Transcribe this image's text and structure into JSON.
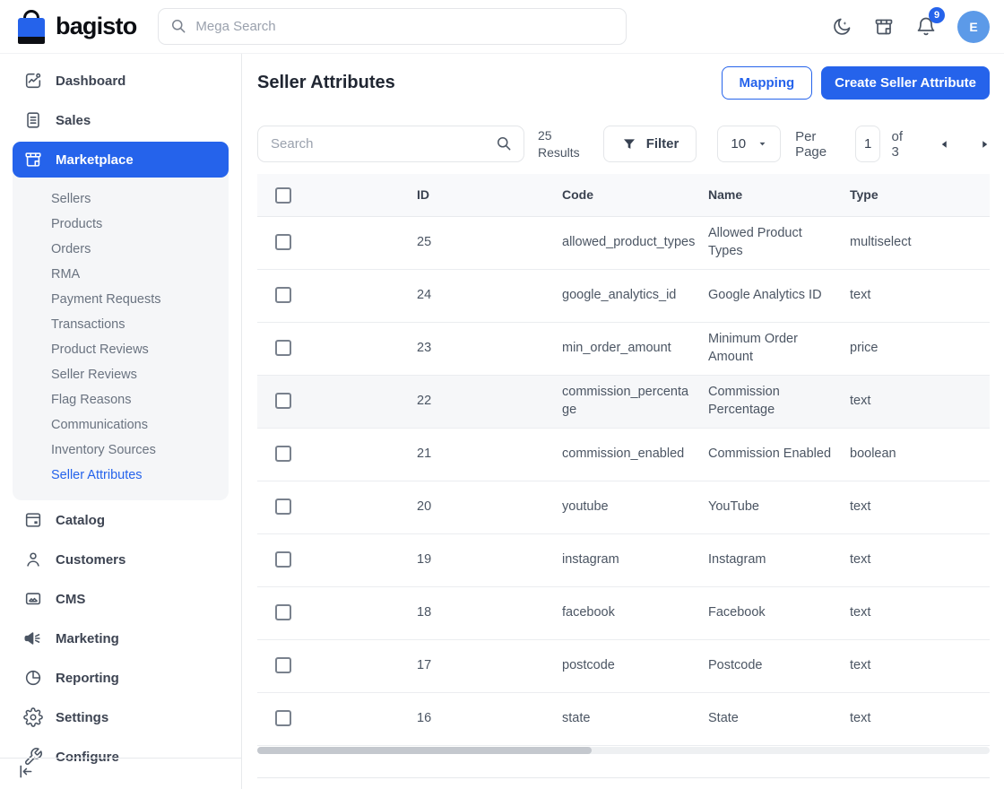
{
  "header": {
    "logo_text": "bagisto",
    "search_placeholder": "Mega Search",
    "notification_count": "9",
    "avatar_initial": "E"
  },
  "sidebar": {
    "items": [
      {
        "label": "Dashboard",
        "icon": "dashboard-icon"
      },
      {
        "label": "Sales",
        "icon": "sales-icon"
      },
      {
        "label": "Marketplace",
        "icon": "marketplace-icon",
        "active": true,
        "children": [
          {
            "label": "Sellers"
          },
          {
            "label": "Products"
          },
          {
            "label": "Orders"
          },
          {
            "label": "RMA"
          },
          {
            "label": "Payment Requests"
          },
          {
            "label": "Transactions"
          },
          {
            "label": "Product Reviews"
          },
          {
            "label": "Seller Reviews"
          },
          {
            "label": "Flag Reasons"
          },
          {
            "label": "Communications"
          },
          {
            "label": "Inventory Sources"
          },
          {
            "label": "Seller Attributes",
            "active": true
          }
        ]
      },
      {
        "label": "Catalog",
        "icon": "catalog-icon"
      },
      {
        "label": "Customers",
        "icon": "customers-icon"
      },
      {
        "label": "CMS",
        "icon": "cms-icon"
      },
      {
        "label": "Marketing",
        "icon": "marketing-icon"
      },
      {
        "label": "Reporting",
        "icon": "reporting-icon"
      },
      {
        "label": "Settings",
        "icon": "settings-icon"
      },
      {
        "label": "Configure",
        "icon": "configure-icon"
      }
    ]
  },
  "page": {
    "title": "Seller Attributes",
    "mapping_button": "Mapping",
    "create_button": "Create Seller Attribute"
  },
  "toolbar": {
    "search_placeholder": "Search",
    "results_count": "25",
    "results_label": "Results",
    "filter_label": "Filter",
    "per_page_value": "10",
    "per_page_label": "Per Page",
    "page_value": "1",
    "page_total_label": "of 3"
  },
  "table": {
    "headers": [
      "ID",
      "Code",
      "Name",
      "Type"
    ],
    "rows": [
      {
        "id": "25",
        "code": "allowed_product_types",
        "name": "Allowed Product Types",
        "type": "multiselect"
      },
      {
        "id": "24",
        "code": "google_analytics_id",
        "name": "Google Analytics ID",
        "type": "text"
      },
      {
        "id": "23",
        "code": "min_order_amount",
        "name": "Minimum Order Amount",
        "type": "price"
      },
      {
        "id": "22",
        "code": "commission_percentage",
        "name": "Commission Percentage",
        "type": "text",
        "highlighted": true
      },
      {
        "id": "21",
        "code": "commission_enabled",
        "name": "Commission Enabled",
        "type": "boolean"
      },
      {
        "id": "20",
        "code": "youtube",
        "name": "YouTube",
        "type": "text"
      },
      {
        "id": "19",
        "code": "instagram",
        "name": "Instagram",
        "type": "text"
      },
      {
        "id": "18",
        "code": "facebook",
        "name": "Facebook",
        "type": "text"
      },
      {
        "id": "17",
        "code": "postcode",
        "name": "Postcode",
        "type": "text"
      },
      {
        "id": "16",
        "code": "state",
        "name": "State",
        "type": "text"
      }
    ]
  },
  "icons": {
    "logo-bag-icon": "shopping-bag",
    "search-icon": "magnifier",
    "dark-mode-icon": "crescent-moon-with-sparkle",
    "storefront-icon": "shop-awning",
    "notifications-icon": "bell",
    "filter-icon": "funnel",
    "caret-down-icon": "▾",
    "prev-page-icon": "◂",
    "next-page-icon": "▸",
    "collapse-sidebar-icon": "⇤"
  },
  "colors": {
    "primary": "#2563eb",
    "avatar_bg": "#5c9ae8",
    "badge_bg": "#2563eb",
    "active_link": "#2563eb",
    "table_header_bg": "#f8f9fb",
    "highlight_row_bg": "#f6f7f9"
  }
}
